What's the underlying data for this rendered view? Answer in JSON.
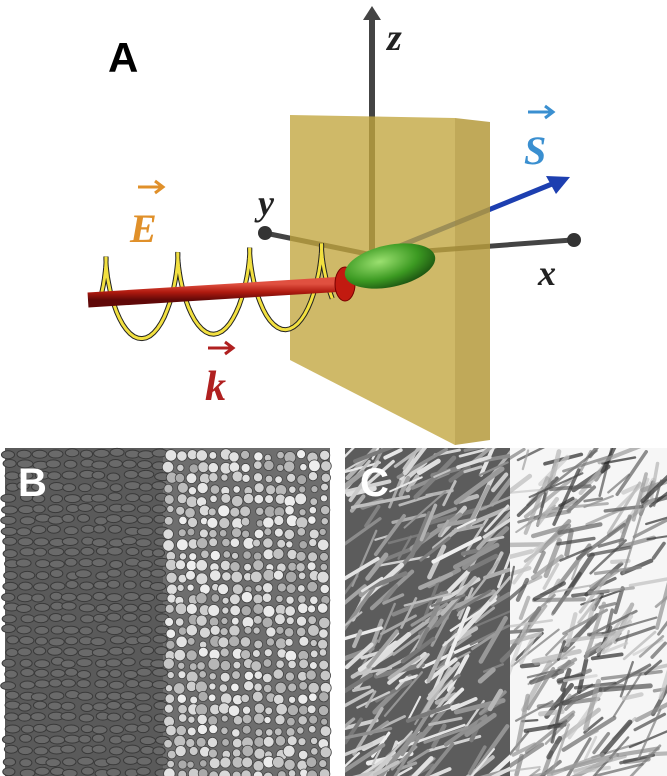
{
  "panel_a": {
    "label": "A",
    "axes": {
      "z": "z",
      "y": "y",
      "x": "x"
    },
    "vectors": {
      "S": "S",
      "E": "E",
      "k": "k"
    }
  },
  "panel_b": {
    "label": "B"
  },
  "panel_c": {
    "label": "C"
  }
}
